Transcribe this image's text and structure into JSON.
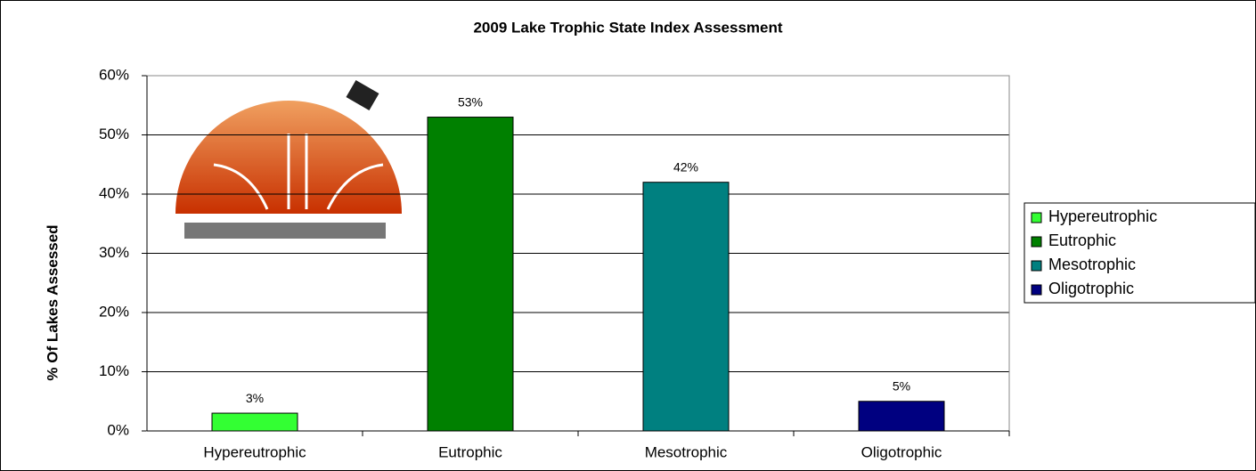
{
  "chart_data": {
    "type": "bar",
    "title": "2009 Lake Trophic State Index Assessment",
    "y_label": "% Of Lakes Assessed",
    "categories": [
      "Hypereutrophic",
      "Eutrophic",
      "Mesotrophic",
      "Oligotrophic"
    ],
    "values": [
      3,
      53,
      42,
      5
    ],
    "value_labels": [
      "3%",
      "53%",
      "42%",
      "5%"
    ],
    "colors": [
      "#33ff33",
      "#008000",
      "#008080",
      "#000080"
    ],
    "ylim": [
      0,
      60
    ],
    "yticks": [
      {
        "value": 0,
        "label": "0%"
      },
      {
        "value": 10,
        "label": "10%"
      },
      {
        "value": 20,
        "label": "20%"
      },
      {
        "value": 30,
        "label": "30%"
      },
      {
        "value": 40,
        "label": "40%"
      },
      {
        "value": 50,
        "label": "50%"
      },
      {
        "value": 60,
        "label": "60%"
      }
    ],
    "grid": true,
    "legend": "right"
  }
}
